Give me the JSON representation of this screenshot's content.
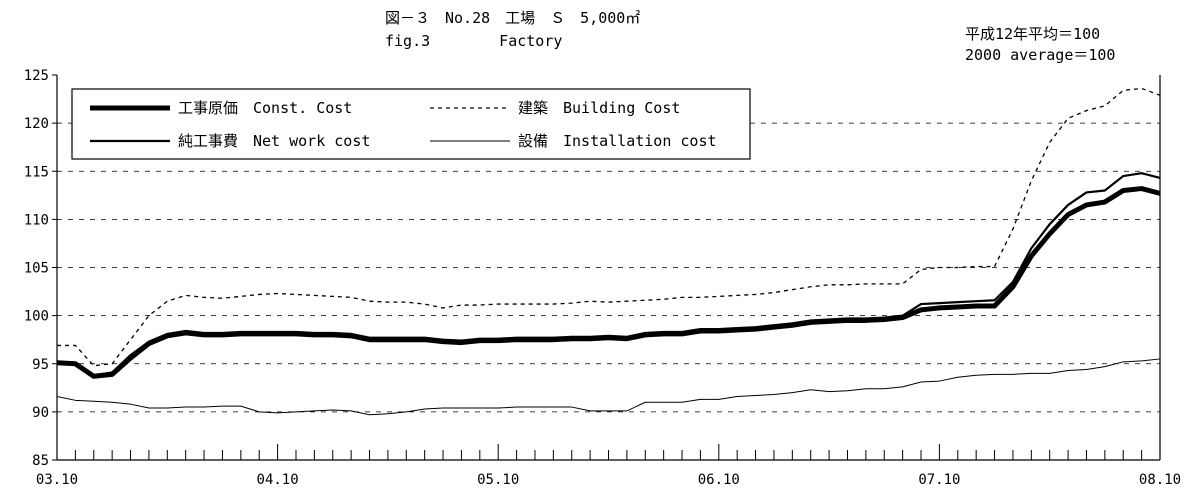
{
  "header": {
    "title_jp": "図－３　No.28　工場　Ｓ　5,000㎡",
    "title_en": "fig.3　　　　 Factory",
    "base_jp": "平成12年平均＝100",
    "base_en": "2000 average＝100"
  },
  "chart_data": {
    "type": "line",
    "title": "図－３　No.28　工場　Ｓ　5,000㎡",
    "subtitle": "fig.3 Factory",
    "xlabel": "",
    "ylabel": "",
    "ylim": [
      85,
      125
    ],
    "yticks": [
      "85",
      "90",
      "95",
      "100",
      "105",
      "110",
      "115",
      "120",
      "125"
    ],
    "xticklabels": [
      "03.10",
      "04.10",
      "05.10",
      "06.10",
      "07.10",
      "08.10"
    ],
    "grid": "horizontal dashed",
    "legend_position": "top-left",
    "x": [
      "03.10",
      "03.11",
      "03.12",
      "04.01",
      "04.02",
      "04.03",
      "04.04",
      "04.05",
      "04.06",
      "04.07",
      "04.08",
      "04.09",
      "04.10",
      "04.11",
      "04.12",
      "05.01",
      "05.02",
      "05.03",
      "05.04",
      "05.05",
      "05.06",
      "05.07",
      "05.08",
      "05.09",
      "05.10",
      "05.11",
      "05.12",
      "06.01",
      "06.02",
      "06.03",
      "06.04",
      "06.05",
      "06.06",
      "06.07",
      "06.08",
      "06.09",
      "06.10",
      "06.11",
      "06.12",
      "07.01",
      "07.02",
      "07.03",
      "07.04",
      "07.05",
      "07.06",
      "07.07",
      "07.08",
      "07.09",
      "07.10",
      "07.11",
      "07.12",
      "08.01",
      "08.02",
      "08.03",
      "08.04",
      "08.05",
      "08.06",
      "08.07",
      "08.08",
      "08.09",
      "08.10"
    ],
    "series": [
      {
        "name": "建築　Building Cost",
        "style": "dotted",
        "values": [
          96.9,
          96.9,
          94.8,
          95.0,
          97.5,
          100.0,
          101.5,
          102.1,
          101.9,
          101.8,
          102.0,
          102.2,
          102.3,
          102.2,
          102.1,
          102.0,
          101.9,
          101.5,
          101.4,
          101.4,
          101.2,
          100.8,
          101.1,
          101.1,
          101.2,
          101.2,
          101.2,
          101.2,
          101.3,
          101.5,
          101.4,
          101.5,
          101.6,
          101.7,
          101.9,
          101.9,
          102.0,
          102.1,
          102.2,
          102.4,
          102.7,
          103.0,
          103.2,
          103.2,
          103.3,
          103.3,
          103.3,
          104.8,
          105.0,
          105.0,
          105.1,
          105.1,
          109.0,
          114.0,
          118.0,
          120.5,
          121.3,
          121.8,
          123.4,
          123.6,
          122.9
        ]
      },
      {
        "name": "純工事費　Net work cost",
        "style": "solid-medium",
        "values": [
          95.2,
          95.1,
          93.8,
          94.1,
          95.9,
          97.3,
          98.1,
          98.4,
          98.2,
          98.2,
          98.3,
          98.3,
          98.3,
          98.3,
          98.2,
          98.2,
          98.1,
          97.7,
          97.7,
          97.7,
          97.7,
          97.5,
          97.4,
          97.6,
          97.6,
          97.7,
          97.7,
          97.7,
          97.8,
          97.8,
          97.9,
          97.8,
          98.2,
          98.3,
          98.3,
          98.6,
          98.6,
          98.7,
          98.8,
          99.0,
          99.2,
          99.5,
          99.6,
          99.7,
          99.7,
          99.8,
          100.0,
          101.2,
          101.3,
          101.4,
          101.5,
          101.6,
          103.5,
          107.0,
          109.5,
          111.5,
          112.8,
          113.0,
          114.5,
          114.8,
          114.3
        ]
      },
      {
        "name": "工事原価　Const. Cost",
        "style": "solid-thick",
        "values": [
          95.1,
          95.0,
          93.7,
          93.9,
          95.6,
          97.1,
          97.9,
          98.2,
          98.0,
          98.0,
          98.1,
          98.1,
          98.1,
          98.1,
          98.0,
          98.0,
          97.9,
          97.5,
          97.5,
          97.5,
          97.5,
          97.3,
          97.2,
          97.4,
          97.4,
          97.5,
          97.5,
          97.5,
          97.6,
          97.6,
          97.7,
          97.6,
          98.0,
          98.1,
          98.1,
          98.4,
          98.4,
          98.5,
          98.6,
          98.8,
          99.0,
          99.3,
          99.4,
          99.5,
          99.5,
          99.6,
          99.8,
          100.6,
          100.8,
          100.9,
          101.0,
          101.0,
          103.0,
          106.2,
          108.5,
          110.5,
          111.5,
          111.8,
          113.0,
          113.2,
          112.7
        ]
      },
      {
        "name": "設備　Installation cost",
        "style": "solid-thin",
        "values": [
          91.6,
          91.2,
          91.1,
          91.0,
          90.8,
          90.4,
          90.4,
          90.5,
          90.5,
          90.6,
          90.6,
          90.0,
          89.9,
          90.0,
          90.1,
          90.2,
          90.1,
          89.7,
          89.8,
          90.0,
          90.3,
          90.4,
          90.4,
          90.4,
          90.4,
          90.5,
          90.5,
          90.5,
          90.5,
          90.1,
          90.1,
          90.1,
          91.0,
          91.0,
          91.0,
          91.3,
          91.3,
          91.6,
          91.7,
          91.8,
          92.0,
          92.3,
          92.1,
          92.2,
          92.4,
          92.4,
          92.6,
          93.1,
          93.2,
          93.6,
          93.8,
          93.9,
          93.9,
          94.0,
          94.0,
          94.3,
          94.4,
          94.7,
          95.2,
          95.3,
          95.5
        ]
      }
    ]
  },
  "legend": {
    "entries": [
      {
        "label": "工事原価　Const. Cost",
        "style": "solid-thick"
      },
      {
        "label": "建築　Building Cost",
        "style": "dotted"
      },
      {
        "label": "純工事費　Net work cost",
        "style": "solid-medium"
      },
      {
        "label": "設備　Installation cost",
        "style": "solid-thin"
      }
    ]
  }
}
